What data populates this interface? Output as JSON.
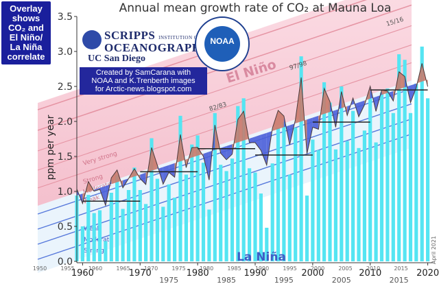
{
  "overlay_note": [
    "Overlay",
    "shows",
    "CO₂ and",
    "El Niño/",
    "La Niña",
    "correlate"
  ],
  "credit": [
    "Created by SamCarana with",
    "NOAA and K.Trenberth images",
    "for Arctic-news.blogspot.com"
  ],
  "logos": {
    "scripps_line1": "SCRIPPS",
    "scripps_sub": "INSTITUTION OF",
    "scripps_line2": "OCEANOGRAPHY",
    "ucsd": "UC San Diego",
    "noaa": "NOAA"
  },
  "chart_data": {
    "type": "bar",
    "title": "Annual mean growth rate of CO₂ at Mauna Loa",
    "ylabel": "ppm per year",
    "ylim": [
      0,
      3.5
    ],
    "xlim": [
      1959,
      2021
    ],
    "y_ticks": [
      "0.0",
      "0.5",
      "1.0",
      "1.5",
      "2.0",
      "2.5",
      "3.0",
      "3.5"
    ],
    "x_ticks_lower": [
      "1960",
      "1970",
      "1980",
      "1990",
      "2000",
      "2010",
      "2020"
    ],
    "x_ticks_upper": [
      "1975",
      "1985",
      "1995",
      "2005",
      "2015"
    ],
    "x_ticks_enso": [
      "1950",
      "1955",
      "1960",
      "1965",
      "1970",
      "1975",
      "1980",
      "1985",
      "1990",
      "1995",
      "2000",
      "2005",
      "2010",
      "2015"
    ],
    "years": [
      1959,
      1960,
      1961,
      1962,
      1963,
      1964,
      1965,
      1966,
      1967,
      1968,
      1969,
      1970,
      1971,
      1972,
      1973,
      1974,
      1975,
      1976,
      1977,
      1978,
      1979,
      1980,
      1981,
      1982,
      1983,
      1984,
      1985,
      1986,
      1987,
      1988,
      1989,
      1990,
      1991,
      1992,
      1993,
      1994,
      1995,
      1996,
      1997,
      1998,
      1999,
      2000,
      2001,
      2002,
      2003,
      2004,
      2005,
      2006,
      2007,
      2008,
      2009,
      2010,
      2011,
      2012,
      2013,
      2014,
      2015,
      2016,
      2017,
      2018,
      2019,
      2020
    ],
    "values": [
      0.94,
      0.5,
      0.95,
      0.69,
      0.73,
      0.29,
      0.98,
      1.23,
      0.75,
      1.02,
      1.34,
      1.02,
      0.82,
      1.76,
      1.18,
      0.78,
      1.1,
      0.91,
      2.08,
      1.24,
      1.67,
      1.8,
      1.41,
      0.74,
      2.12,
      1.38,
      1.29,
      1.47,
      2.22,
      2.33,
      1.33,
      1.27,
      0.97,
      0.48,
      1.4,
      1.91,
      1.99,
      1.24,
      1.91,
      2.93,
      0.94,
      1.74,
      1.59,
      2.56,
      2.27,
      1.6,
      2.5,
      1.72,
      2.15,
      1.62,
      1.87,
      2.42,
      1.7,
      2.41,
      2.47,
      2.12,
      2.96,
      2.88,
      2.12,
      2.54,
      3.07,
      2.33
    ],
    "decadal": [
      {
        "label": "1960s",
        "value": 0.86
      },
      {
        "label": "1970s",
        "value": 1.28
      },
      {
        "label": "1980s",
        "value": 1.61
      },
      {
        "label": "1990s",
        "value": 1.52
      },
      {
        "label": "2000s",
        "value": 1.99
      },
      {
        "label": "2010s",
        "value": 2.45
      }
    ],
    "enso_labels": {
      "el_nino": "El Niño",
      "la_nina": "La Niña",
      "bands_el_nino": [
        "Very strong",
        "Strong",
        "Moderate",
        "Weak"
      ],
      "bands_la_nina": [
        "Weak",
        "Moderate",
        "Strong"
      ],
      "events": [
        "82/83",
        "97/98",
        "15/16"
      ]
    },
    "date_note": "April 2021",
    "colors": {
      "bars": "#55e5f2",
      "el_nino_fill": "#c97a6b",
      "la_nina_fill": "#4a5ed8",
      "decadal": "#222222",
      "el_nino_band": "#f6c6d2",
      "title": "#333333"
    }
  }
}
